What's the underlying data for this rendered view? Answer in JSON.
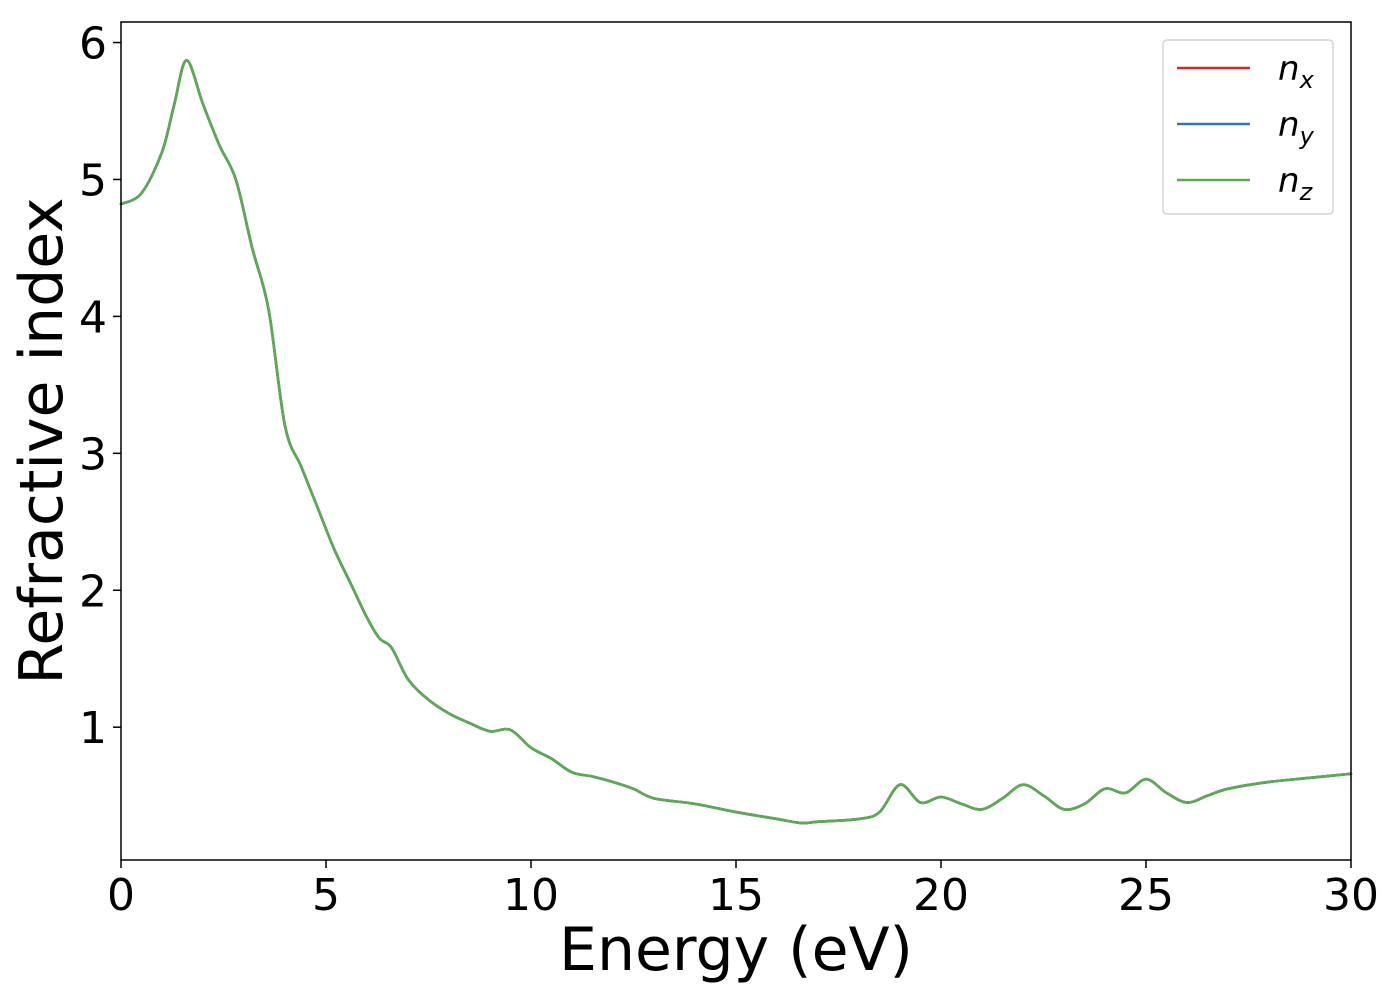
{
  "chart_data": {
    "type": "line",
    "xlabel": "Energy (eV)",
    "ylabel": "Refractive index",
    "xlim": [
      0,
      30
    ],
    "ylim": [
      0.03,
      6.15
    ],
    "xticks": [
      0,
      5,
      10,
      15,
      20,
      25,
      30
    ],
    "yticks": [
      1,
      2,
      3,
      4,
      5,
      6
    ],
    "grid": false,
    "legend_position": "top-right",
    "x": [
      0,
      0.5,
      1.0,
      1.3,
      1.6,
      2.0,
      2.4,
      2.8,
      3.2,
      3.6,
      4.0,
      4.4,
      4.8,
      5.2,
      5.6,
      6.0,
      6.3,
      6.6,
      7.0,
      7.5,
      8.0,
      8.5,
      9.0,
      9.5,
      10.0,
      10.5,
      11.0,
      11.5,
      12.0,
      12.5,
      13.0,
      14.0,
      15.0,
      16.0,
      16.6,
      17.0,
      18.0,
      18.5,
      19.0,
      19.5,
      20.0,
      20.5,
      21.0,
      21.5,
      22.0,
      22.5,
      23.0,
      23.5,
      24.0,
      24.5,
      25.0,
      25.5,
      26.0,
      26.5,
      27.0,
      28.0,
      29.0,
      30.0
    ],
    "series": [
      {
        "name": "n_x",
        "label_base": "n",
        "label_sub": "x",
        "color": "#d62728",
        "values": [
          4.82,
          4.9,
          5.2,
          5.55,
          5.87,
          5.55,
          5.25,
          5.0,
          4.5,
          4.05,
          3.2,
          2.9,
          2.6,
          2.3,
          2.05,
          1.8,
          1.65,
          1.58,
          1.35,
          1.2,
          1.1,
          1.03,
          0.97,
          0.98,
          0.85,
          0.77,
          0.67,
          0.64,
          0.6,
          0.55,
          0.48,
          0.44,
          0.38,
          0.33,
          0.3,
          0.31,
          0.33,
          0.38,
          0.58,
          0.45,
          0.49,
          0.44,
          0.4,
          0.48,
          0.58,
          0.5,
          0.4,
          0.44,
          0.55,
          0.52,
          0.62,
          0.52,
          0.45,
          0.5,
          0.55,
          0.6,
          0.63,
          0.66
        ]
      },
      {
        "name": "n_y",
        "label_base": "n",
        "label_sub": "y",
        "color": "#3b75af",
        "values": [
          4.82,
          4.9,
          5.2,
          5.55,
          5.87,
          5.55,
          5.25,
          5.0,
          4.5,
          4.05,
          3.2,
          2.9,
          2.6,
          2.3,
          2.05,
          1.8,
          1.65,
          1.58,
          1.35,
          1.2,
          1.1,
          1.03,
          0.97,
          0.98,
          0.85,
          0.77,
          0.67,
          0.64,
          0.6,
          0.55,
          0.48,
          0.44,
          0.38,
          0.33,
          0.3,
          0.31,
          0.33,
          0.38,
          0.58,
          0.45,
          0.49,
          0.44,
          0.4,
          0.48,
          0.58,
          0.5,
          0.4,
          0.44,
          0.55,
          0.52,
          0.62,
          0.52,
          0.45,
          0.5,
          0.55,
          0.6,
          0.63,
          0.66
        ]
      },
      {
        "name": "n_z",
        "label_base": "n",
        "label_sub": "z",
        "color": "#5aac52",
        "values": [
          4.82,
          4.9,
          5.2,
          5.55,
          5.87,
          5.55,
          5.25,
          5.0,
          4.5,
          4.05,
          3.2,
          2.9,
          2.6,
          2.3,
          2.05,
          1.8,
          1.65,
          1.58,
          1.35,
          1.2,
          1.1,
          1.03,
          0.97,
          0.98,
          0.85,
          0.77,
          0.67,
          0.64,
          0.6,
          0.55,
          0.48,
          0.44,
          0.38,
          0.33,
          0.3,
          0.31,
          0.33,
          0.38,
          0.58,
          0.45,
          0.49,
          0.44,
          0.4,
          0.48,
          0.58,
          0.5,
          0.4,
          0.44,
          0.55,
          0.52,
          0.62,
          0.52,
          0.45,
          0.5,
          0.55,
          0.6,
          0.63,
          0.66
        ]
      }
    ]
  }
}
